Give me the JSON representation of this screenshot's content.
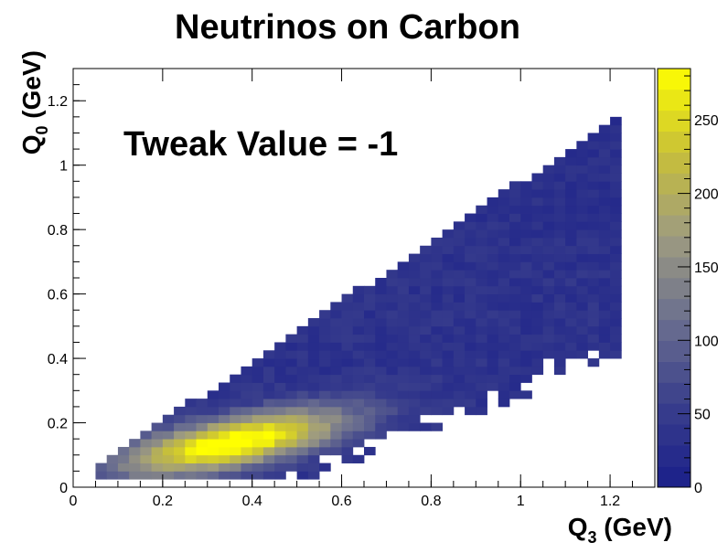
{
  "chart_data": {
    "type": "heatmap",
    "title": "Neutrinos on Carbon",
    "annotation": "Tweak Value = -1",
    "xlabel": {
      "main": "Q",
      "sub": "3",
      "unit": " (GeV)"
    },
    "ylabel": {
      "main": "Q",
      "sub": "0",
      "unit": " (GeV)"
    },
    "xlim": [
      0,
      1.3
    ],
    "ylim": [
      0,
      1.3
    ],
    "x_ticks": [
      {
        "v": 0,
        "label": "0"
      },
      {
        "v": 0.2,
        "label": "0.2"
      },
      {
        "v": 0.4,
        "label": "0.4"
      },
      {
        "v": 0.6,
        "label": "0.6"
      },
      {
        "v": 0.8,
        "label": "0.8"
      },
      {
        "v": 1.0,
        "label": "1"
      },
      {
        "v": 1.2,
        "label": "1.2"
      }
    ],
    "y_ticks": [
      {
        "v": 0,
        "label": "0"
      },
      {
        "v": 0.2,
        "label": "0.2"
      },
      {
        "v": 0.4,
        "label": "0.4"
      },
      {
        "v": 0.6,
        "label": "0.6"
      },
      {
        "v": 0.8,
        "label": "0.8"
      },
      {
        "v": 1.0,
        "label": "1"
      },
      {
        "v": 1.2,
        "label": "1.2"
      }
    ],
    "bin_width_x": 0.025,
    "bin_width_y": 0.025,
    "z_range": [
      0,
      285
    ],
    "colorbar": {
      "ticks": [
        {
          "v": 0,
          "label": "0"
        },
        {
          "v": 50,
          "label": "50"
        },
        {
          "v": 100,
          "label": "100"
        },
        {
          "v": 150,
          "label": "150"
        },
        {
          "v": 200,
          "label": "200"
        },
        {
          "v": 250,
          "label": "250"
        }
      ],
      "colors": [
        "#1a1f8a",
        "#3a3f8c",
        "#6b6f8f",
        "#9e9b80",
        "#c8c038",
        "#ffff00"
      ]
    }
  }
}
